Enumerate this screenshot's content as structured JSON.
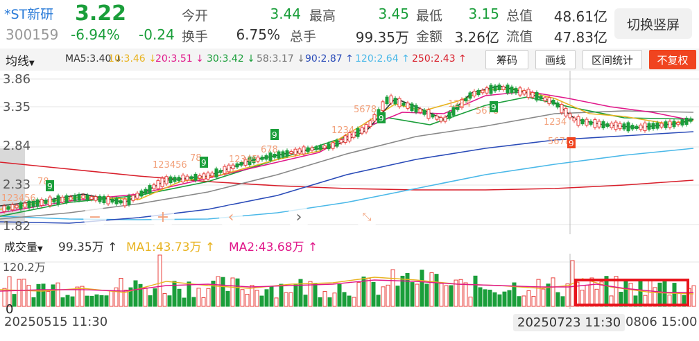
{
  "header": {
    "name": "*ST新研",
    "price": "3.22",
    "code": "300159",
    "change_pct": "-6.94%",
    "change": "-0.24",
    "stats": [
      {
        "label": "今开",
        "value": "3.44",
        "color": "green"
      },
      {
        "label": "最高",
        "value": "3.45",
        "color": "green"
      },
      {
        "label": "最低",
        "value": "3.15",
        "color": "green"
      },
      {
        "label": "总值",
        "value": "48.61亿",
        "color": "dark"
      },
      {
        "label": "换手",
        "value": "6.75%",
        "color": "dark"
      },
      {
        "label": "总手",
        "value": "99.35万",
        "color": "dark"
      },
      {
        "label": "金额",
        "value": "3.26亿",
        "color": "dark"
      },
      {
        "label": "流值",
        "value": "47.83亿",
        "color": "dark"
      }
    ],
    "switch_label": "切换竖屏"
  },
  "toolbar": {
    "ma_select": "均线",
    "ma_items": [
      {
        "text": "MA5:3.40 ↓",
        "color": "#333333"
      },
      {
        "text": "10:3.46 ↓",
        "color": "#e8b320"
      },
      {
        "text": "20:3.51 ↓",
        "color": "#e0188a"
      },
      {
        "text": "30:3.42 ↓",
        "color": "#1a9e3a"
      },
      {
        "text": "58:3.17 ↓",
        "color": "#888888"
      },
      {
        "text": "90:2.87 ↑",
        "color": "#2a4bb8"
      },
      {
        "text": "120:2.64 ↑",
        "color": "#4ab8e8"
      },
      {
        "text": "250:2.43 ↑",
        "color": "#d81e2a"
      }
    ],
    "buttons": {
      "chips": "筹码",
      "draw": "画线",
      "range": "区间统计",
      "adjust": "不复权"
    }
  },
  "price_axis": [
    "3.86",
    "3.35",
    "2.84",
    "2.33",
    "1.82"
  ],
  "volume": {
    "select": "成交量",
    "value": "99.35万 ↑",
    "ma1": "MA1:43.73万 ↑",
    "ma2": "MA2:43.68万 ↑",
    "axis_top": "120.2万",
    "axis_bottom": "0"
  },
  "dates": {
    "left": "20250515 11:30",
    "cursor": "20250723 11:30",
    "right": "0806 15:00"
  },
  "signals": {
    "count_mark": "9"
  },
  "colors": {
    "up": "#e8413d",
    "down": "#1a9e3a",
    "highlight": "#e8141c"
  }
}
